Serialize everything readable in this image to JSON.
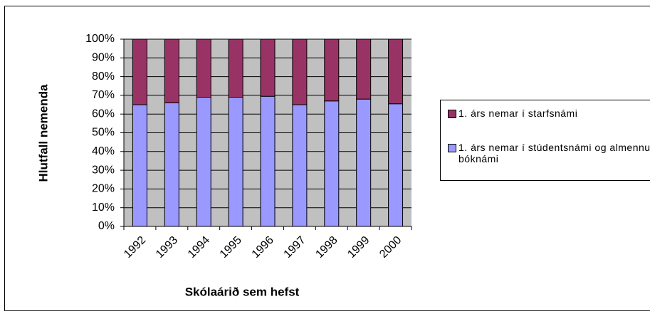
{
  "chart_data": {
    "type": "stacked_bar",
    "x_label": "Skólaárið sem hefst",
    "y_label": "Hlutfall nemenda",
    "categories": [
      "1992",
      "1993",
      "1994",
      "1995",
      "1996",
      "1997",
      "1998",
      "1999",
      "2000"
    ],
    "series": [
      {
        "name": "1. árs nemar í stúdentsnámi og almennu bóknámi",
        "color": "#9999ff",
        "values": [
          65,
          66,
          69,
          69,
          69.5,
          65,
          67,
          68,
          65.5
        ]
      },
      {
        "name": "1. árs nemar í starfsnámi",
        "color": "#993366",
        "values": [
          35,
          34,
          31,
          31,
          30.5,
          35,
          33,
          32,
          34.5
        ]
      }
    ],
    "ylim": [
      0,
      100
    ],
    "yticks": [
      {
        "value": 0,
        "label": "0%"
      },
      {
        "value": 10,
        "label": "10%"
      },
      {
        "value": 20,
        "label": "20%"
      },
      {
        "value": 30,
        "label": "30%"
      },
      {
        "value": 40,
        "label": "40%"
      },
      {
        "value": 50,
        "label": "50%"
      },
      {
        "value": 60,
        "label": "60%"
      },
      {
        "value": 70,
        "label": "70%"
      },
      {
        "value": 80,
        "label": "80%"
      },
      {
        "value": 90,
        "label": "90%"
      },
      {
        "value": 100,
        "label": "100%"
      }
    ],
    "grid": true,
    "legend": "right"
  }
}
